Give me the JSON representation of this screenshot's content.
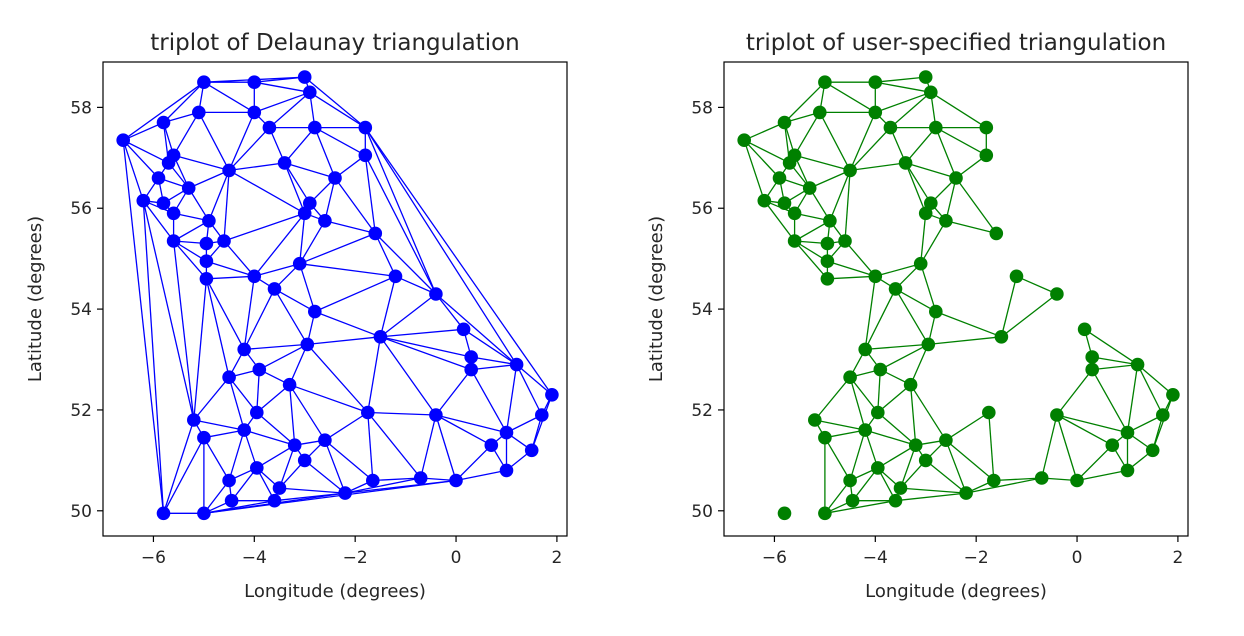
{
  "chart_data": [
    {
      "type": "triplot",
      "title": "triplot of Delaunay triangulation",
      "xlabel": "Longitude (degrees)",
      "ylabel": "Latitude (degrees)",
      "xlim": [
        -7,
        2.2
      ],
      "ylim": [
        49.5,
        58.9
      ],
      "xticks": [
        -6,
        -4,
        -2,
        0,
        2
      ],
      "yticks": [
        50,
        52,
        54,
        56,
        58
      ],
      "xtick_labels": [
        "−6",
        "−4",
        "−2",
        "0",
        "2"
      ],
      "ytick_labels": [
        "50",
        "52",
        "54",
        "56",
        "58"
      ],
      "color": "#0000ff",
      "triangulation": "delaunay",
      "points": [
        [
          -5.0,
          58.5
        ],
        [
          -4.0,
          58.5
        ],
        [
          -3.0,
          58.6
        ],
        [
          -2.9,
          58.3
        ],
        [
          -5.1,
          57.9
        ],
        [
          -5.8,
          57.7
        ],
        [
          -4.0,
          57.9
        ],
        [
          -3.7,
          57.6
        ],
        [
          -2.8,
          57.6
        ],
        [
          -1.8,
          57.6
        ],
        [
          -6.6,
          57.35
        ],
        [
          -5.6,
          57.05
        ],
        [
          -5.7,
          56.9
        ],
        [
          -4.5,
          56.75
        ],
        [
          -3.4,
          56.9
        ],
        [
          -1.8,
          57.05
        ],
        [
          -5.9,
          56.6
        ],
        [
          -5.3,
          56.4
        ],
        [
          -2.4,
          56.6
        ],
        [
          -6.2,
          56.15
        ],
        [
          -5.8,
          56.1
        ],
        [
          -2.9,
          56.1
        ],
        [
          -5.6,
          55.9
        ],
        [
          -3.0,
          55.9
        ],
        [
          -4.9,
          55.75
        ],
        [
          -2.6,
          55.75
        ],
        [
          -5.6,
          55.35
        ],
        [
          -4.6,
          55.35
        ],
        [
          -4.95,
          55.3
        ],
        [
          -1.6,
          55.5
        ],
        [
          -4.95,
          54.95
        ],
        [
          -3.1,
          54.9
        ],
        [
          -4.0,
          54.65
        ],
        [
          -1.2,
          54.65
        ],
        [
          -4.95,
          54.6
        ],
        [
          -3.6,
          54.4
        ],
        [
          -0.4,
          54.3
        ],
        [
          -2.8,
          53.95
        ],
        [
          0.15,
          53.6
        ],
        [
          -2.95,
          53.3
        ],
        [
          -1.5,
          53.45
        ],
        [
          -4.2,
          53.2
        ],
        [
          0.3,
          53.05
        ],
        [
          -3.9,
          52.8
        ],
        [
          0.3,
          52.8
        ],
        [
          1.2,
          52.9
        ],
        [
          -4.5,
          52.65
        ],
        [
          -3.3,
          52.5
        ],
        [
          1.9,
          52.3
        ],
        [
          -5.2,
          51.8
        ],
        [
          -3.95,
          51.95
        ],
        [
          -1.75,
          51.95
        ],
        [
          -0.4,
          51.9
        ],
        [
          1.7,
          51.9
        ],
        [
          -5.0,
          51.45
        ],
        [
          -4.2,
          51.6
        ],
        [
          1.0,
          51.55
        ],
        [
          -2.6,
          51.4
        ],
        [
          -3.2,
          51.3
        ],
        [
          0.7,
          51.3
        ],
        [
          -3.0,
          51.0
        ],
        [
          1.5,
          51.2
        ],
        [
          -3.95,
          50.85
        ],
        [
          -4.5,
          50.6
        ],
        [
          -1.65,
          50.6
        ],
        [
          -0.7,
          50.65
        ],
        [
          0.0,
          50.6
        ],
        [
          -3.5,
          50.45
        ],
        [
          1.0,
          50.8
        ],
        [
          -4.45,
          50.2
        ],
        [
          -3.6,
          50.2
        ],
        [
          -2.2,
          50.35
        ],
        [
          -5.8,
          49.95
        ],
        [
          -5.0,
          49.95
        ]
      ]
    },
    {
      "type": "triplot",
      "title": "triplot of user-specified triangulation",
      "xlabel": "Longitude (degrees)",
      "ylabel": "Latitude (degrees)",
      "xlim": [
        -7,
        2.2
      ],
      "ylim": [
        49.5,
        58.9
      ],
      "xticks": [
        -6,
        -4,
        -2,
        0,
        2
      ],
      "yticks": [
        50,
        52,
        54,
        56,
        58
      ],
      "xtick_labels": [
        "−6",
        "−4",
        "−2",
        "0",
        "2"
      ],
      "ytick_labels": [
        "50",
        "52",
        "54",
        "56",
        "58"
      ],
      "color": "#008000",
      "triangulation": "user-specified",
      "edge_cutoff_degrees": 1.55
    }
  ]
}
